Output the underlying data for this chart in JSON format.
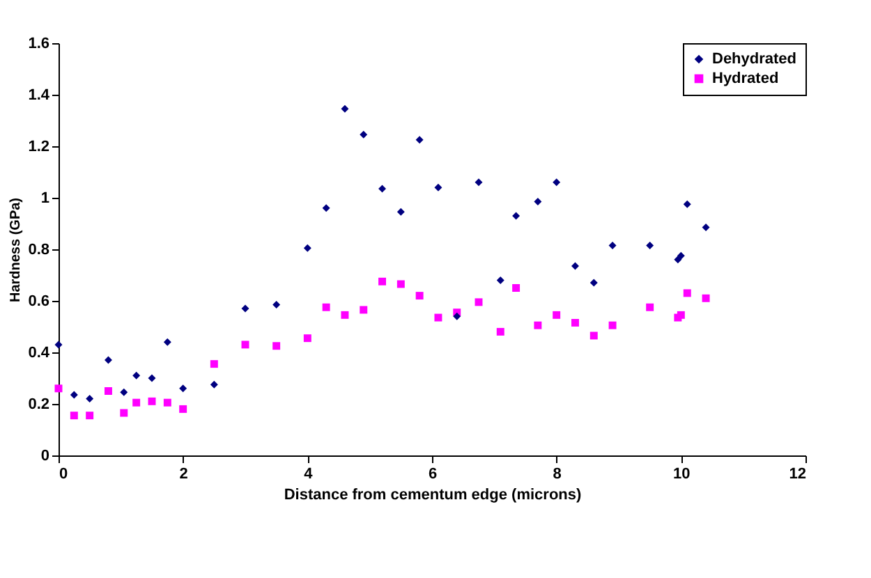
{
  "chart_data": {
    "type": "scatter",
    "xlabel": "Distance from cementum edge (microns)",
    "ylabel": "Hardness (GPa)",
    "x": [
      0,
      0.25,
      0.5,
      0.8,
      1.05,
      1.25,
      1.5,
      1.75,
      2.0,
      2.5,
      3.0,
      3.5,
      4.0,
      4.3,
      4.6,
      4.9,
      5.2,
      5.5,
      5.8,
      6.1,
      6.4,
      6.75,
      7.1,
      7.35,
      7.7,
      8.0,
      8.3,
      8.6,
      8.9,
      9.5,
      9.95,
      10.0,
      10.1,
      10.4
    ],
    "series": [
      {
        "name": "Dehydrated",
        "color": "#000080",
        "marker": "diamond",
        "values": [
          0.43,
          0.235,
          0.22,
          0.37,
          0.245,
          0.31,
          0.3,
          0.44,
          0.26,
          0.275,
          0.57,
          0.585,
          0.805,
          0.96,
          1.345,
          1.245,
          1.035,
          0.945,
          1.225,
          1.04,
          0.54,
          1.06,
          0.68,
          0.93,
          0.985,
          1.06,
          0.735,
          0.67,
          0.815,
          0.815,
          0.76,
          0.775,
          0.975,
          0.885
        ]
      },
      {
        "name": "Hydrated",
        "color": "#ff00ff",
        "marker": "square",
        "values": [
          0.26,
          0.155,
          0.155,
          0.25,
          0.165,
          0.205,
          0.21,
          0.205,
          0.18,
          0.355,
          0.43,
          0.425,
          0.455,
          0.575,
          0.545,
          0.565,
          0.675,
          0.665,
          0.62,
          0.535,
          0.555,
          0.595,
          0.48,
          0.65,
          0.505,
          0.545,
          0.515,
          0.465,
          0.505,
          0.575,
          0.535,
          0.545,
          0.63,
          0.61
        ]
      }
    ],
    "xlim": [
      0,
      12
    ],
    "xticks": [
      0,
      2,
      4,
      6,
      8,
      10,
      12
    ],
    "ylim": [
      0,
      1.6
    ],
    "yticks": [
      0,
      0.2,
      0.4,
      0.6,
      0.8,
      1,
      1.2,
      1.4,
      1.6
    ],
    "grid": false,
    "legend": "top right"
  }
}
